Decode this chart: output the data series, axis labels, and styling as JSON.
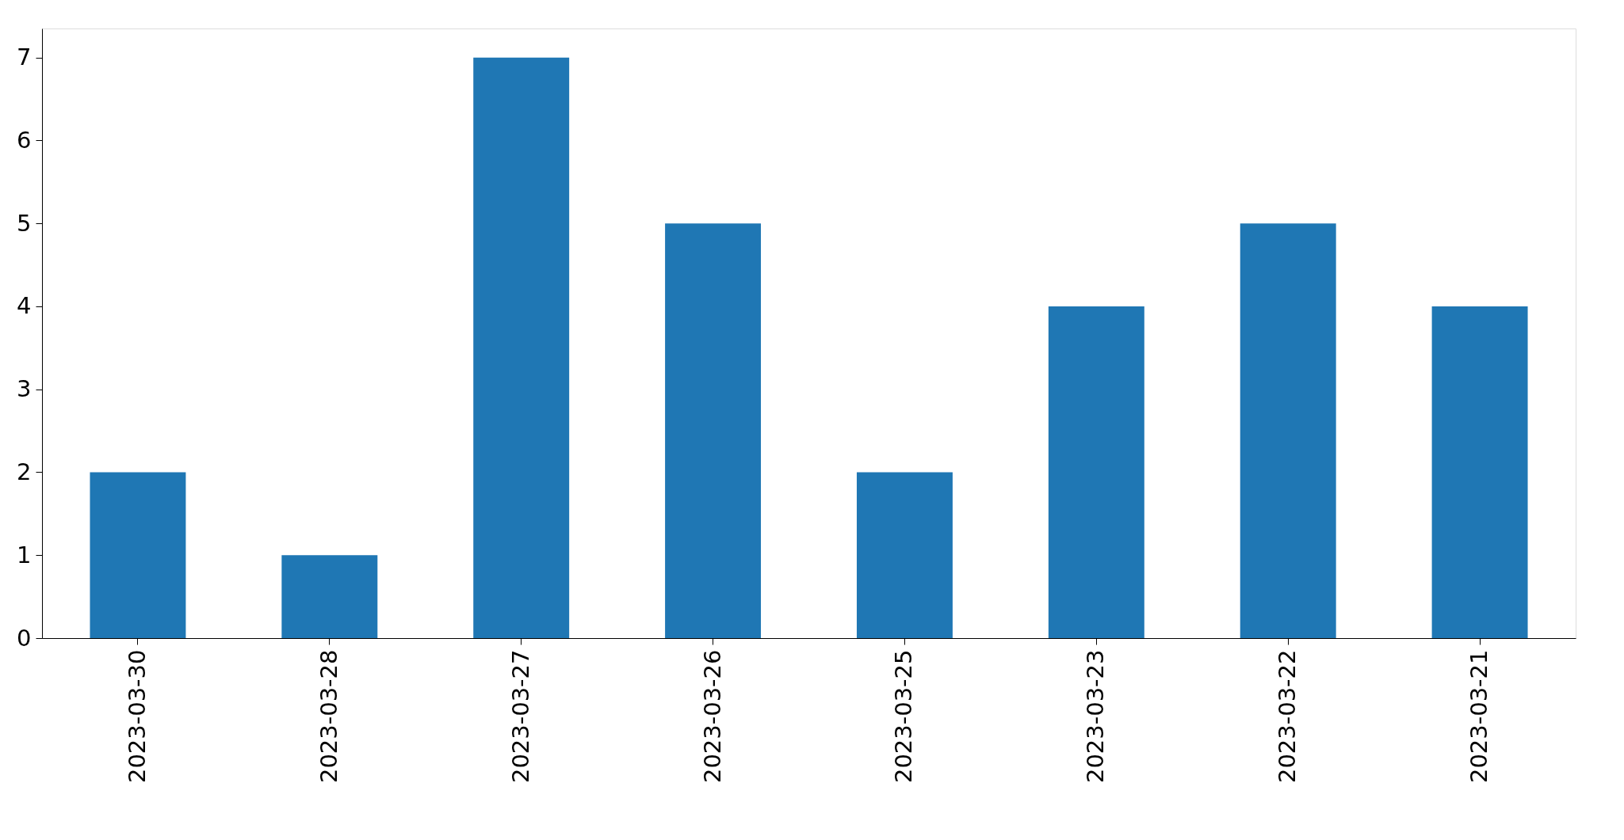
{
  "chart_data": {
    "type": "bar",
    "categories": [
      "2023-03-30",
      "2023-03-28",
      "2023-03-27",
      "2023-03-26",
      "2023-03-25",
      "2023-03-23",
      "2023-03-22",
      "2023-03-21"
    ],
    "values": [
      2,
      1,
      7,
      5,
      2,
      4,
      5,
      4
    ],
    "color": "#1f77b4",
    "ylim": [
      0,
      7.35
    ],
    "yticks": [
      0,
      1,
      2,
      3,
      4,
      5,
      6,
      7
    ],
    "grid": false
  }
}
